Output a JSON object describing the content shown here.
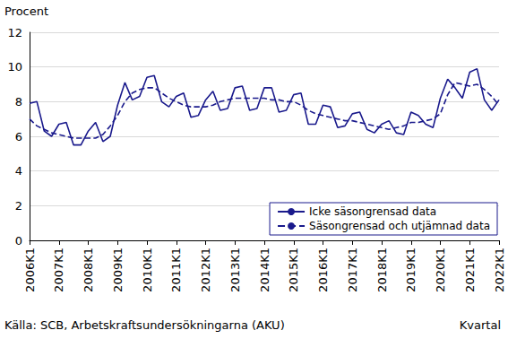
{
  "chart_data": {
    "type": "line",
    "y_label": "Procent",
    "x_label": "Kvartal",
    "source": "Källa: SCB, Arbetskraftsundersökningarna (AKU)",
    "categories": [
      "2006K1",
      null,
      null,
      null,
      "2007K1",
      null,
      null,
      null,
      "2008K1",
      null,
      null,
      null,
      "2009K1",
      null,
      null,
      null,
      "2010K1",
      null,
      null,
      null,
      "2011K1",
      null,
      null,
      null,
      "2012K1",
      null,
      null,
      null,
      "2013K1",
      null,
      null,
      null,
      "2014K1",
      null,
      null,
      null,
      "2015K1",
      null,
      null,
      null,
      "2016K1",
      null,
      null,
      null,
      "2017K1",
      null,
      null,
      null,
      "2018K1",
      null,
      null,
      null,
      "2019K1",
      null,
      null,
      null,
      "2020K1",
      null,
      null,
      null,
      "2021K1",
      null,
      null,
      null,
      "2022K1"
    ],
    "series": [
      {
        "name": "Icke säsongrensad data",
        "color": "#1a1a8c",
        "line_style": "solid",
        "marker": "none",
        "values": [
          7.9,
          8.0,
          6.3,
          6.0,
          6.7,
          6.8,
          5.5,
          5.5,
          6.3,
          6.8,
          5.7,
          6.0,
          7.8,
          9.1,
          8.1,
          8.3,
          9.4,
          9.5,
          8.0,
          7.7,
          8.3,
          8.5,
          7.1,
          7.2,
          8.1,
          8.6,
          7.5,
          7.6,
          8.8,
          8.9,
          7.5,
          7.6,
          8.8,
          8.8,
          7.4,
          7.5,
          8.4,
          8.5,
          6.7,
          6.7,
          7.8,
          7.7,
          6.5,
          6.6,
          7.3,
          7.4,
          6.4,
          6.2,
          6.7,
          6.9,
          6.2,
          6.1,
          7.4,
          7.2,
          6.7,
          6.5,
          8.2,
          9.3,
          8.8,
          8.2,
          9.7,
          9.9,
          8.1,
          7.5,
          8.1
        ]
      },
      {
        "name": "Säsongrensad och utjämnad data",
        "color": "#1a1a8c",
        "line_style": "dashed",
        "marker": "none",
        "values": [
          7.0,
          6.6,
          6.4,
          6.2,
          6.1,
          6.0,
          5.9,
          5.9,
          5.9,
          5.9,
          6.1,
          6.6,
          7.2,
          8.0,
          8.5,
          8.7,
          8.8,
          8.8,
          8.5,
          8.2,
          8.0,
          7.8,
          7.7,
          7.7,
          7.7,
          7.8,
          8.0,
          8.1,
          8.2,
          8.2,
          8.2,
          8.2,
          8.2,
          8.1,
          8.1,
          8.0,
          8.0,
          7.8,
          7.5,
          7.3,
          7.2,
          7.1,
          7.0,
          6.9,
          6.9,
          6.8,
          6.7,
          6.6,
          6.5,
          6.4,
          6.5,
          6.6,
          6.8,
          6.8,
          6.9,
          7.0,
          7.3,
          8.4,
          9.1,
          9.0,
          8.9,
          9.0,
          8.7,
          8.3,
          7.8
        ]
      }
    ],
    "ylim": [
      0,
      12
    ],
    "yticks": [
      0,
      2,
      4,
      6,
      8,
      10,
      12
    ],
    "grid": true,
    "legend": "bottom-right"
  }
}
